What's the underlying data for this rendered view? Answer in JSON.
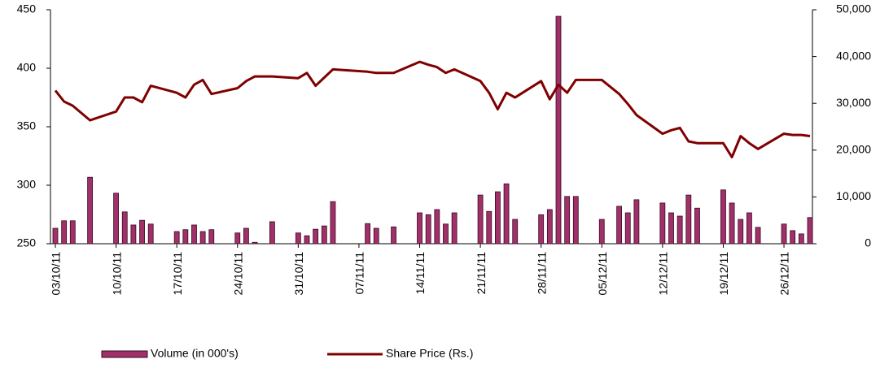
{
  "chart_data": {
    "type": "combo",
    "x": [
      "03/10/11",
      "04/10/11",
      "05/10/11",
      "07/10/11",
      "10/10/11",
      "11/10/11",
      "12/10/11",
      "13/10/11",
      "14/10/11",
      "17/10/11",
      "18/10/11",
      "19/10/11",
      "20/10/11",
      "21/10/11",
      "24/10/11",
      "25/10/11",
      "26/10/11",
      "28/10/11",
      "31/10/11",
      "01/11/11",
      "02/11/11",
      "03/11/11",
      "04/11/11",
      "08/11/11",
      "09/11/11",
      "11/11/11",
      "14/11/11",
      "15/11/11",
      "16/11/11",
      "17/11/11",
      "18/11/11",
      "21/11/11",
      "22/11/11",
      "23/11/11",
      "24/11/11",
      "25/11/11",
      "28/11/11",
      "29/11/11",
      "30/11/11",
      "01/12/11",
      "02/12/11",
      "05/12/11",
      "07/12/11",
      "08/12/11",
      "09/12/11",
      "12/12/11",
      "13/12/11",
      "14/12/11",
      "15/12/11",
      "16/12/11",
      "19/12/11",
      "20/12/11",
      "21/12/11",
      "22/12/11",
      "23/12/11",
      "26/12/11",
      "27/12/11",
      "28/12/11",
      "29/12/11"
    ],
    "xlim": [
      "03/10/11",
      "29/12/11"
    ],
    "xticks": [
      "03/10/11",
      "10/10/11",
      "17/10/11",
      "24/10/11",
      "31/10/11",
      "07/11/11",
      "14/11/11",
      "21/11/11",
      "28/11/11",
      "05/12/11",
      "12/12/11",
      "19/12/11",
      "26/12/11"
    ],
    "series": [
      {
        "name": "Volume (in 000's)",
        "type": "bar",
        "axis": "y2",
        "color": "#a0306a",
        "values": [
          3300,
          4900,
          4900,
          14200,
          10800,
          6800,
          4000,
          5000,
          4200,
          2600,
          3000,
          4000,
          2600,
          3000,
          2300,
          3300,
          300,
          4700,
          2300,
          1700,
          3100,
          3800,
          9000,
          4300,
          3300,
          3600,
          6600,
          6200,
          7300,
          4200,
          6600,
          10400,
          6900,
          11100,
          12800,
          5200,
          6200,
          7300,
          48600,
          10100,
          10100,
          5200,
          8000,
          6600,
          9400,
          8700,
          6600,
          5900,
          10400,
          7600,
          11500,
          8700,
          5200,
          6600,
          3500,
          4200,
          2800,
          2100,
          5600
        ]
      },
      {
        "name": "Share Price (Rs.)",
        "type": "line",
        "color": "#800000",
        "values": [
          381,
          371.5,
          368,
          355.5,
          363,
          375,
          375,
          371,
          385,
          379,
          375,
          386,
          390,
          378,
          383,
          389,
          393,
          393,
          391.5,
          396,
          385,
          392,
          399,
          397,
          396,
          396,
          405.5,
          403,
          401,
          396,
          399,
          389,
          379,
          365,
          379,
          375,
          389,
          373.5,
          386,
          379,
          390,
          390,
          378,
          369.5,
          360,
          344,
          347,
          349,
          337.5,
          336,
          336,
          324,
          342,
          336,
          331,
          344,
          343,
          343,
          342
        ]
      }
    ],
    "ylim": [
      250,
      450
    ],
    "yticks": [
      250,
      300,
      350,
      400,
      450
    ],
    "y2lim": [
      0,
      50000
    ],
    "y2ticks": [
      0,
      {
        "value": 10000,
        "label": "10,000"
      },
      {
        "value": 20000,
        "label": "20,000"
      },
      {
        "value": 30000,
        "label": "30,000"
      },
      {
        "value": 40000,
        "label": "40,000"
      },
      {
        "value": 50000,
        "label": "50,000"
      }
    ],
    "legend": "bottom"
  }
}
